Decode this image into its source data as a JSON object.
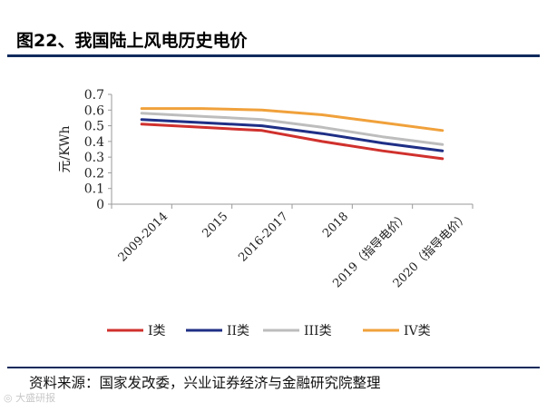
{
  "figure": {
    "title": "图22、我国陆上风电历史电价",
    "source": "资料来源：国家发改委，兴业证券经济与金融研究院整理",
    "watermark": "大盛研报"
  },
  "chart_data": {
    "type": "line",
    "title": "图22、我国陆上风电历史电价",
    "xlabel": "",
    "ylabel": "元/KWh",
    "ylim": [
      0,
      0.7
    ],
    "yticks": [
      0,
      0.1,
      0.2,
      0.3,
      0.4,
      0.5,
      0.6,
      0.7
    ],
    "ytick_labels": [
      "0",
      "0.1",
      "0.2",
      "0.3",
      "0.4",
      "0.5",
      "0.6",
      "0.7"
    ],
    "categories": [
      "2009-2014",
      "2015",
      "2016-2017",
      "2018",
      "2019（指导电价）",
      "2020（指导电价）"
    ],
    "legend_position": "bottom",
    "series": [
      {
        "name": "I类",
        "color": "#d0312d",
        "values": [
          0.51,
          0.49,
          0.47,
          0.4,
          0.34,
          0.29
        ]
      },
      {
        "name": "II类",
        "color": "#1f2f86",
        "values": [
          0.54,
          0.52,
          0.5,
          0.45,
          0.39,
          0.34
        ]
      },
      {
        "name": "III类",
        "color": "#bdbdbd",
        "values": [
          0.58,
          0.56,
          0.54,
          0.49,
          0.43,
          0.38
        ]
      },
      {
        "name": "IV类",
        "color": "#f0a13b",
        "values": [
          0.61,
          0.61,
          0.6,
          0.57,
          0.52,
          0.47
        ]
      }
    ]
  }
}
